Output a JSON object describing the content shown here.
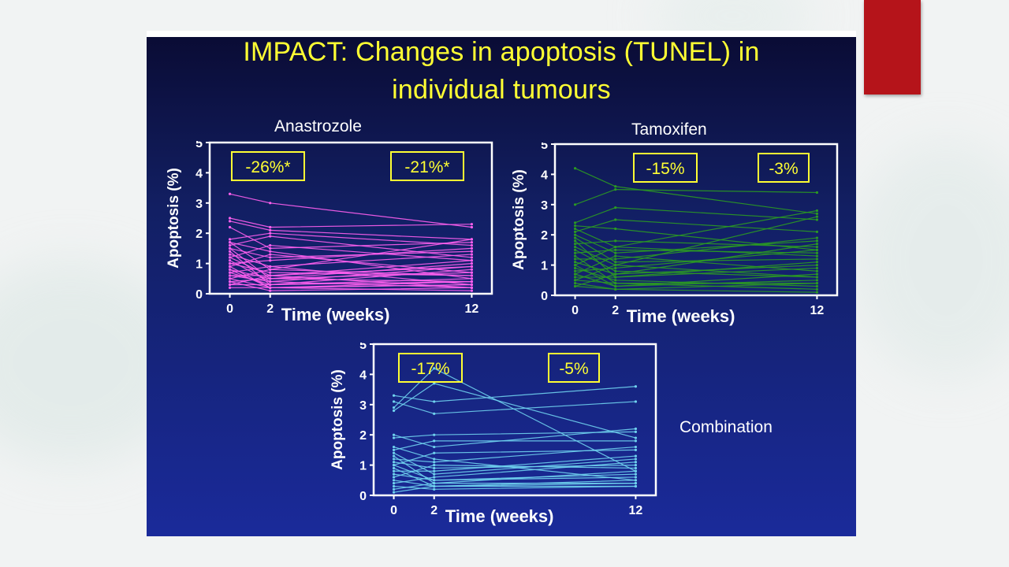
{
  "colors": {
    "accent": "#b5141a",
    "title": "#ffff33",
    "axis": "#ffffff",
    "box_text": "#ffff33",
    "box_border": "#ffff33"
  },
  "slide": {
    "title_line1": "IMPACT: Changes in apoptosis (TUNEL) in",
    "title_line2": "individual tumours",
    "combination_label": "Combination"
  },
  "chart_data": [
    {
      "type": "line",
      "title": "Anastrozole",
      "color": "#ff5ff0",
      "xlabel": "Time (weeks)",
      "ylabel": "Apoptosis (%)",
      "xticks": [
        0,
        2,
        12
      ],
      "yticks": [
        0,
        1,
        2,
        3,
        4,
        5
      ],
      "xlim": [
        -1,
        13
      ],
      "ylim": [
        0,
        5
      ],
      "annotations": [
        {
          "text": "-26%*",
          "period": "0-2 weeks"
        },
        {
          "text": "-21%*",
          "period": "0-12 weeks"
        }
      ],
      "series": [
        {
          "values": [
            3.3,
            3.0,
            2.2
          ]
        },
        {
          "values": [
            2.5,
            2.2,
            2.3
          ]
        },
        {
          "values": [
            2.4,
            2.1,
            1.8
          ]
        },
        {
          "values": [
            2.2,
            1.5,
            1.7
          ]
        },
        {
          "values": [
            1.8,
            2.0,
            1.6
          ]
        },
        {
          "values": [
            1.7,
            0.8,
            1.8
          ]
        },
        {
          "values": [
            1.7,
            1.4,
            0.5
          ]
        },
        {
          "values": [
            1.6,
            1.9,
            1.2
          ]
        },
        {
          "values": [
            1.5,
            0.5,
            0.4
          ]
        },
        {
          "values": [
            1.5,
            1.2,
            1.4
          ]
        },
        {
          "values": [
            1.4,
            0.3,
            0.8
          ]
        },
        {
          "values": [
            1.3,
            0.9,
            0.3
          ]
        },
        {
          "values": [
            1.2,
            1.6,
            1.1
          ]
        },
        {
          "values": [
            1.2,
            0.6,
            0.9
          ]
        },
        {
          "values": [
            1.1,
            0.4,
            0.2
          ]
        },
        {
          "values": [
            1.0,
            1.1,
            1.5
          ]
        },
        {
          "values": [
            1.0,
            0.7,
            0.6
          ]
        },
        {
          "values": [
            0.9,
            0.2,
            0.3
          ]
        },
        {
          "values": [
            0.9,
            1.3,
            0.7
          ]
        },
        {
          "values": [
            0.8,
            0.5,
            1.0
          ]
        },
        {
          "values": [
            0.8,
            0.2,
            0.4
          ]
        },
        {
          "values": [
            0.7,
            0.9,
            1.3
          ]
        },
        {
          "values": [
            0.7,
            0.3,
            0.5
          ]
        },
        {
          "values": [
            0.6,
            0.6,
            0.2
          ]
        },
        {
          "values": [
            0.6,
            0.4,
            0.9
          ]
        },
        {
          "values": [
            0.5,
            0.8,
            0.6
          ]
        },
        {
          "values": [
            0.5,
            0.2,
            0.3
          ]
        },
        {
          "values": [
            0.4,
            0.5,
            0.7
          ]
        },
        {
          "values": [
            0.4,
            0.1,
            0.2
          ]
        },
        {
          "values": [
            0.3,
            0.3,
            0.4
          ]
        },
        {
          "values": [
            0.3,
            0.6,
            1.1
          ]
        },
        {
          "values": [
            0.2,
            0.2,
            0.1
          ]
        }
      ]
    },
    {
      "type": "line",
      "title": "Tamoxifen",
      "color": "#2b9a22",
      "xlabel": "Time (weeks)",
      "ylabel": "Apoptosis (%)",
      "xticks": [
        0,
        2,
        12
      ],
      "yticks": [
        0,
        1,
        2,
        3,
        4,
        5
      ],
      "xlim": [
        -1,
        13
      ],
      "ylim": [
        0,
        5
      ],
      "annotations": [
        {
          "text": "-15%",
          "period": "0-2 weeks"
        },
        {
          "text": "-3%",
          "period": "0-12 weeks"
        }
      ],
      "series": [
        {
          "values": [
            4.2,
            3.6,
            2.7
          ]
        },
        {
          "values": [
            3.0,
            3.5,
            3.4
          ]
        },
        {
          "values": [
            2.4,
            2.9,
            2.5
          ]
        },
        {
          "values": [
            2.3,
            2.2,
            1.5
          ]
        },
        {
          "values": [
            2.2,
            1.6,
            2.8
          ]
        },
        {
          "values": [
            2.1,
            2.5,
            2.1
          ]
        },
        {
          "values": [
            2.0,
            1.4,
            1.8
          ]
        },
        {
          "values": [
            1.9,
            1.1,
            1.2
          ]
        },
        {
          "values": [
            1.8,
            0.6,
            0.9
          ]
        },
        {
          "values": [
            1.7,
            1.8,
            1.6
          ]
        },
        {
          "values": [
            1.6,
            1.0,
            2.6
          ]
        },
        {
          "values": [
            1.5,
            0.8,
            0.6
          ]
        },
        {
          "values": [
            1.4,
            1.5,
            1.4
          ]
        },
        {
          "values": [
            1.3,
            0.4,
            0.4
          ]
        },
        {
          "values": [
            1.2,
            1.2,
            1.9
          ]
        },
        {
          "values": [
            1.1,
            0.7,
            1.0
          ]
        },
        {
          "values": [
            1.0,
            0.3,
            0.7
          ]
        },
        {
          "values": [
            1.0,
            1.6,
            1.3
          ]
        },
        {
          "values": [
            0.9,
            0.5,
            0.3
          ]
        },
        {
          "values": [
            0.8,
            0.9,
            1.5
          ]
        },
        {
          "values": [
            0.7,
            0.3,
            0.5
          ]
        },
        {
          "values": [
            0.7,
            1.3,
            0.8
          ]
        },
        {
          "values": [
            0.6,
            0.6,
            1.1
          ]
        },
        {
          "values": [
            0.5,
            0.4,
            0.2
          ]
        },
        {
          "values": [
            0.5,
            1.0,
            0.6
          ]
        },
        {
          "values": [
            0.4,
            0.2,
            0.4
          ]
        },
        {
          "values": [
            0.3,
            0.7,
            1.7
          ]
        },
        {
          "values": [
            0.3,
            0.2,
            0.1
          ]
        }
      ]
    },
    {
      "type": "line",
      "title": "",
      "color": "#6fd2ee",
      "xlabel": "Time (weeks)",
      "ylabel": "Apoptosis (%)",
      "xticks": [
        0,
        2,
        12
      ],
      "yticks": [
        0,
        1,
        2,
        3,
        4,
        5
      ],
      "xlim": [
        -1,
        13
      ],
      "ylim": [
        0,
        5
      ],
      "annotations": [
        {
          "text": "-17%",
          "period": "0-2 weeks"
        },
        {
          "text": "-5%",
          "period": "0-12 weeks"
        }
      ],
      "series": [
        {
          "values": [
            3.3,
            3.1,
            3.6
          ]
        },
        {
          "values": [
            3.1,
            2.7,
            3.1
          ]
        },
        {
          "values": [
            2.9,
            4.2,
            0.8
          ]
        },
        {
          "values": [
            2.8,
            3.7,
            1.9
          ]
        },
        {
          "values": [
            2.0,
            1.6,
            2.2
          ]
        },
        {
          "values": [
            1.9,
            2.0,
            2.1
          ]
        },
        {
          "values": [
            1.6,
            1.2,
            0.5
          ]
        },
        {
          "values": [
            1.5,
            1.8,
            1.8
          ]
        },
        {
          "values": [
            1.4,
            0.7,
            1.2
          ]
        },
        {
          "values": [
            1.3,
            0.4,
            0.4
          ]
        },
        {
          "values": [
            1.2,
            1.1,
            1.6
          ]
        },
        {
          "values": [
            1.1,
            0.9,
            1.0
          ]
        },
        {
          "values": [
            1.0,
            0.5,
            0.7
          ]
        },
        {
          "values": [
            1.0,
            1.4,
            1.5
          ]
        },
        {
          "values": [
            0.9,
            0.3,
            0.3
          ]
        },
        {
          "values": [
            0.8,
            0.8,
            1.3
          ]
        },
        {
          "values": [
            0.7,
            0.5,
            0.6
          ]
        },
        {
          "values": [
            0.6,
            1.0,
            0.9
          ]
        },
        {
          "values": [
            0.5,
            0.3,
            0.4
          ]
        },
        {
          "values": [
            0.4,
            0.6,
            1.1
          ]
        },
        {
          "values": [
            0.3,
            0.2,
            0.3
          ]
        },
        {
          "values": [
            0.2,
            0.4,
            0.8
          ]
        },
        {
          "values": [
            0.1,
            0.3,
            0.5
          ]
        }
      ]
    }
  ]
}
